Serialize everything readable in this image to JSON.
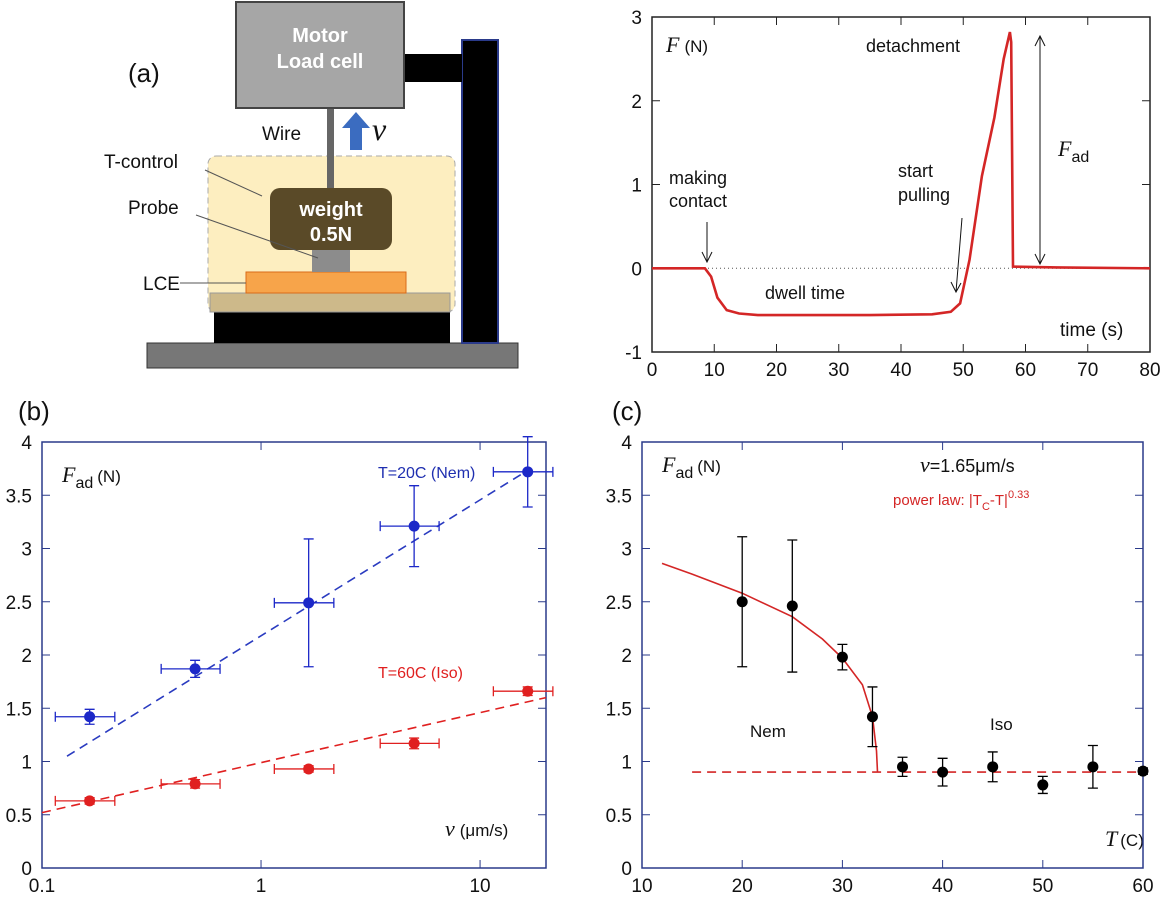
{
  "diagram": {
    "panel_label": "(a)",
    "motor": [
      "Motor",
      "Load cell"
    ],
    "wire": "Wire",
    "velocity": "v",
    "t_control": "T-control",
    "probe": "Probe",
    "weight": [
      "weight",
      "0.5N"
    ],
    "lce": "LCE"
  },
  "chart_data": [
    {
      "type": "line",
      "x": [
        0,
        8.5,
        9.5,
        10.5,
        12,
        14,
        17,
        25,
        35,
        45,
        48,
        49.5,
        51,
        53,
        55,
        56.5,
        57.5,
        57.7,
        58,
        65,
        80
      ],
      "values": [
        0,
        0,
        -0.1,
        -0.35,
        -0.5,
        -0.54,
        -0.56,
        -0.56,
        -0.56,
        -0.55,
        -0.52,
        -0.42,
        0.1,
        1.1,
        1.8,
        2.5,
        2.82,
        2.7,
        0.02,
        0.01,
        0
      ],
      "color": "#d42626",
      "hline": 0,
      "xlim": [
        0,
        80
      ],
      "xticks": [
        0,
        10,
        20,
        30,
        40,
        50,
        60,
        70,
        80
      ],
      "ylim": [
        -1,
        3
      ],
      "yticks": [
        -1,
        0,
        1,
        2,
        3
      ],
      "y_label": {
        "symbol": "F",
        "unit": "(N)"
      },
      "x_label": "time (s)",
      "annotations": {
        "detachment": "detachment",
        "making_contact": [
          "making",
          "contact"
        ],
        "start_pulling": [
          "start",
          "pulling"
        ],
        "dwell": "dwell time",
        "force": {
          "symbol": "F",
          "subscript": "ad"
        }
      }
    },
    {
      "type": "scatter",
      "panel_label": "(b)",
      "xscale": "log",
      "xlim": [
        0.1,
        20
      ],
      "xticks": [
        0.1,
        1,
        10
      ],
      "ylim": [
        0,
        4
      ],
      "yticks": [
        0,
        0.5,
        1,
        1.5,
        2,
        2.5,
        3,
        3.5,
        4
      ],
      "y_label": {
        "symbol": "F",
        "subscript": "ad",
        "unit": "(N)"
      },
      "x_label": {
        "symbol": "v",
        "unit": "(μm/s)"
      },
      "series": [
        {
          "name": "T=20C (Nem)",
          "color": "#1c28c8",
          "x": [
            0.165,
            0.5,
            1.65,
            5,
            16.5
          ],
          "values": [
            1.42,
            1.87,
            2.49,
            3.21,
            3.72
          ],
          "yerr": [
            0.07,
            0.08,
            0.6,
            0.38,
            0.33
          ],
          "xerr": [
            0.05,
            0.15,
            0.5,
            1.5,
            5
          ]
        },
        {
          "name": "T=60C (Iso)",
          "color": "#e02020",
          "x": [
            0.165,
            0.5,
            1.65,
            5,
            16.5
          ],
          "values": [
            0.63,
            0.79,
            0.93,
            1.17,
            1.66
          ],
          "yerr": [
            0.03,
            0.04,
            0.03,
            0.05,
            0.04
          ],
          "xerr": [
            0.05,
            0.15,
            0.5,
            1.5,
            5
          ]
        }
      ],
      "fits": [
        {
          "color": "#2a3bc0",
          "x": [
            0.13,
            17
          ],
          "values": [
            1.05,
            3.75
          ]
        },
        {
          "color": "#e02020",
          "x": [
            0.1,
            20
          ],
          "values": [
            0.52,
            1.6
          ]
        }
      ]
    },
    {
      "type": "scatter",
      "panel_label": "(c)",
      "xlim": [
        10,
        60
      ],
      "xticks": [
        10,
        20,
        30,
        40,
        50,
        60
      ],
      "ylim": [
        0,
        4
      ],
      "yticks": [
        0,
        0.5,
        1,
        1.5,
        2,
        2.5,
        3,
        3.5,
        4
      ],
      "y_label": {
        "symbol": "F",
        "subscript": "ad",
        "unit": "(N)"
      },
      "x_label": {
        "symbol": "T",
        "unit": "(C)"
      },
      "color": "#000000",
      "x": [
        20,
        25,
        30,
        33,
        36,
        40,
        45,
        50,
        55,
        60
      ],
      "values": [
        2.5,
        2.46,
        1.98,
        1.42,
        0.95,
        0.9,
        0.95,
        0.78,
        0.95,
        0.91
      ],
      "yerr": [
        0.61,
        0.62,
        0.12,
        0.28,
        0.09,
        0.13,
        0.14,
        0.08,
        0.2,
        0.03
      ],
      "fits": [
        {
          "color": "#d42626",
          "x": [
            12,
            15,
            20,
            25,
            28,
            30,
            32,
            33,
            33.4,
            33.5
          ],
          "values": [
            2.86,
            2.76,
            2.58,
            2.36,
            2.15,
            1.97,
            1.72,
            1.42,
            1.1,
            0.9
          ]
        },
        {
          "color": "#d42626",
          "dash": true,
          "x": [
            15,
            60
          ],
          "values": [
            0.9,
            0.9
          ]
        }
      ],
      "speed_label": {
        "symbol": "v",
        "text": "=1.65μm/s"
      },
      "power_law_label": {
        "before": "power law: |T",
        "sub": "C",
        "middle": "-T|",
        "sup": "0.33"
      },
      "regions": [
        "Nem",
        "Iso"
      ]
    }
  ]
}
